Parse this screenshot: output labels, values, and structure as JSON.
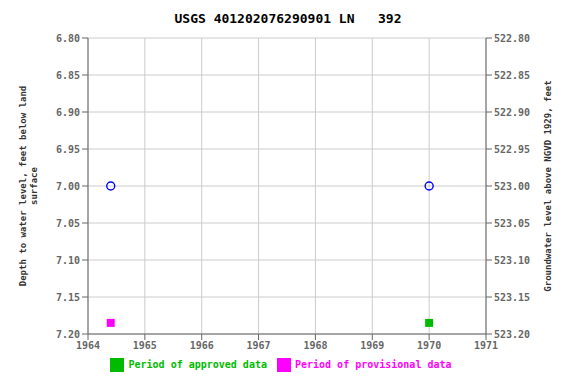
{
  "chart_data": {
    "type": "scatter",
    "title": "USGS 401202076290901 LN   392",
    "y_label": "Depth to water level, feet below land\nsurface",
    "y2_label": "Groundwater level above NGVD 1929, feet",
    "xlim": [
      1964,
      1971
    ],
    "xticks": [
      1964,
      1965,
      1966,
      1967,
      1968,
      1969,
      1970,
      1971
    ],
    "ylim": [
      7.2,
      6.8
    ],
    "yticks": [
      {
        "value": 6.8,
        "label": "6.80"
      },
      6.85,
      {
        "value": 6.9,
        "label": "6.90"
      },
      6.95,
      {
        "value": 7.0,
        "label": "7.00"
      },
      7.05,
      {
        "value": 7.1,
        "label": "7.10"
      },
      7.15,
      {
        "value": 7.2,
        "label": "7.20"
      }
    ],
    "y2lim": [
      523.2,
      522.8
    ],
    "y2ticks": [
      {
        "value": 523.2,
        "label": "523.20"
      },
      523.15,
      {
        "value": 523.1,
        "label": "523.10"
      },
      523.05,
      {
        "value": 523.0,
        "label": "523.00"
      },
      522.95,
      {
        "value": 522.9,
        "label": "522.90"
      },
      522.85,
      {
        "value": 522.8,
        "label": "522.80"
      }
    ],
    "grid": true,
    "legend": "bottom",
    "series": [
      {
        "x": [
          1964.4,
          1970.0
        ],
        "values": [
          7.0,
          7.0
        ],
        "color": "blue",
        "marker": "open_circle"
      },
      {
        "name": "Period of provisional data",
        "x": [
          1964.4
        ],
        "values": [
          7.185
        ],
        "color": "#ff00ff",
        "marker": "square"
      },
      {
        "name": "Period of approved data",
        "x": [
          1970.0
        ],
        "values": [
          7.185
        ],
        "color": "#00bb00",
        "marker": "square"
      }
    ]
  }
}
